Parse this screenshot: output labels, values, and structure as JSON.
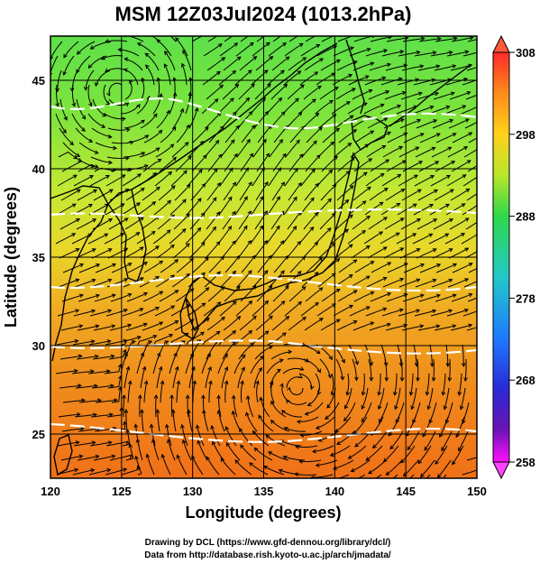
{
  "title": "MSM 12Z03Jul2024 (1013.2hPa)",
  "map": {
    "xlabel": "Longitude (degrees)",
    "ylabel": "Latitude  (degrees)",
    "lon_range": [
      120,
      150
    ],
    "lat_range": [
      22.5,
      47.5
    ],
    "lon_ticks": [
      "120",
      "125",
      "130",
      "135",
      "140",
      "145",
      "150"
    ],
    "lat_ticks": [
      "45",
      "40",
      "35",
      "30",
      "25"
    ],
    "lon_tick_values": [
      120,
      125,
      130,
      135,
      140,
      145,
      150
    ],
    "lat_tick_values": [
      45,
      40,
      35,
      30,
      25
    ],
    "grid": true
  },
  "colorbar": {
    "ticks": [
      "308",
      "298",
      "288",
      "278",
      "268",
      "258"
    ],
    "tick_values": [
      308,
      298,
      288,
      278,
      268,
      258
    ],
    "range": [
      258,
      308
    ],
    "colors": [
      "#ff2a2a",
      "#ff8c1a",
      "#ffd21a",
      "#b8e62a",
      "#2ed84a",
      "#21c8c8",
      "#1e78ff",
      "#2a2ad8",
      "#6a14b4",
      "#ff10ff"
    ]
  },
  "credits": {
    "line1": "Drawing by DCL (https://www.gfd-dennou.org/library/dcl/)",
    "line2": "Data from http://database.rish.kyoto-u.ac.jp/arch/jmadata/"
  }
}
